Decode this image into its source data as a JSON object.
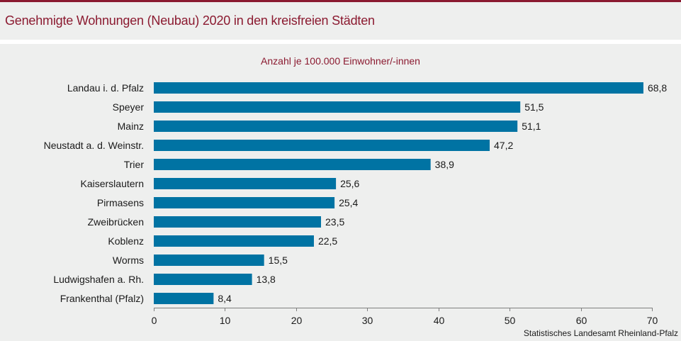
{
  "header": {
    "title": "Genehmigte Wohnungen (Neubau) 2020 in den kreisfreien Städten"
  },
  "footer": {
    "source": "Statistisches Landesamt  Rheinland-Pfalz"
  },
  "colors": {
    "accent": "#8b1a30",
    "bar": "#0073a3",
    "axis": "#7f7f7f",
    "background": "#eeefee"
  },
  "chart_data": {
    "type": "bar",
    "orientation": "horizontal",
    "title": "Genehmigte Wohnungen (Neubau) 2020 in den kreisfreien Städten",
    "subtitle": "Anzahl je 100.000 Einwohner/-innen",
    "xlabel": "",
    "ylabel": "",
    "categories": [
      "Landau i. d. Pfalz",
      "Speyer",
      "Mainz",
      "Neustadt a. d. Weinstr.",
      "Trier",
      "Kaiserslautern",
      "Pirmasens",
      "Zweibrücken",
      "Koblenz",
      "Worms",
      "Ludwigshafen a. Rh.",
      "Frankenthal (Pfalz)"
    ],
    "values": [
      68.8,
      51.5,
      51.1,
      47.2,
      38.9,
      25.6,
      25.4,
      23.5,
      22.5,
      15.5,
      13.8,
      8.4
    ],
    "value_labels": [
      "68,8",
      "51,5",
      "51,1",
      "47,2",
      "38,9",
      "25,6",
      "25,4",
      "23,5",
      "22,5",
      "15,5",
      "13,8",
      "8,4"
    ],
    "xlim": [
      0,
      70
    ],
    "xticks": [
      0,
      10,
      20,
      30,
      40,
      50,
      60,
      70
    ],
    "xtick_labels": [
      "0",
      "10",
      "20",
      "30",
      "40",
      "50",
      "60",
      "70"
    ],
    "grid": false,
    "legend": "none"
  }
}
